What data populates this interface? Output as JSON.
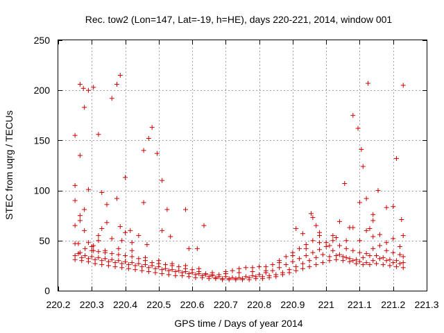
{
  "chart_data": {
    "type": "scatter",
    "title": "Rec. tow2 (Lon=147, Lat=-19, h=HE), days 220-221, 2014, window 001",
    "xlabel": "GPS time / Days of year 2014",
    "ylabel": "STEC from uqrg / TECUs",
    "xlim": [
      220.2,
      221.3
    ],
    "ylim": [
      0,
      250
    ],
    "x_ticks": [
      220.2,
      220.3,
      220.4,
      220.5,
      220.6,
      220.7,
      220.8,
      220.9,
      221.0,
      221.1,
      221.2,
      221.3
    ],
    "x_tick_labels": [
      "220.2",
      "220.3",
      "220.4",
      "220.5",
      "220.6",
      "220.7",
      "220.8",
      "220.9",
      "221",
      "221.1",
      "221.2",
      "221.3"
    ],
    "y_ticks": [
      0,
      50,
      100,
      150,
      200,
      250
    ],
    "y_tick_labels": [
      "0",
      "50",
      "100",
      "150",
      "200",
      "250"
    ],
    "grid": true,
    "marker_color": "#cc0000",
    "marker": "plus",
    "points": [
      [
        220.25,
        155
      ],
      [
        220.25,
        105
      ],
      [
        220.25,
        90
      ],
      [
        220.25,
        65
      ],
      [
        220.25,
        47
      ],
      [
        220.25,
        35
      ],
      [
        220.265,
        206
      ],
      [
        220.265,
        135
      ],
      [
        220.265,
        75
      ],
      [
        220.265,
        70
      ],
      [
        220.265,
        38
      ],
      [
        220.275,
        202
      ],
      [
        220.278,
        183
      ],
      [
        220.278,
        81
      ],
      [
        220.278,
        60
      ],
      [
        220.29,
        200
      ],
      [
        220.29,
        101
      ],
      [
        220.29,
        48
      ],
      [
        220.305,
        203
      ],
      [
        220.305,
        45
      ],
      [
        220.305,
        40
      ],
      [
        220.32,
        156
      ],
      [
        220.32,
        55
      ],
      [
        220.32,
        50
      ],
      [
        220.33,
        98
      ],
      [
        220.33,
        62
      ],
      [
        220.345,
        86
      ],
      [
        220.345,
        68
      ],
      [
        220.36,
        192
      ],
      [
        220.36,
        52
      ],
      [
        220.375,
        206
      ],
      [
        220.375,
        92
      ],
      [
        220.385,
        215
      ],
      [
        220.385,
        64
      ],
      [
        220.39,
        50
      ],
      [
        220.4,
        113
      ],
      [
        220.4,
        58
      ],
      [
        220.415,
        60
      ],
      [
        220.42,
        48
      ],
      [
        220.44,
        55
      ],
      [
        220.455,
        140
      ],
      [
        220.455,
        88
      ],
      [
        220.465,
        46
      ],
      [
        220.47,
        152
      ],
      [
        220.48,
        163
      ],
      [
        220.495,
        137
      ],
      [
        220.51,
        110
      ],
      [
        220.51,
        60
      ],
      [
        220.525,
        81
      ],
      [
        220.535,
        54
      ],
      [
        220.58,
        81
      ],
      [
        220.59,
        42
      ],
      [
        220.615,
        42
      ],
      [
        220.635,
        65
      ],
      [
        220.25,
        31
      ],
      [
        220.27,
        30
      ],
      [
        220.29,
        29
      ],
      [
        220.31,
        27
      ],
      [
        220.33,
        26
      ],
      [
        220.35,
        25
      ],
      [
        220.37,
        24
      ],
      [
        220.39,
        23
      ],
      [
        220.41,
        22
      ],
      [
        220.43,
        21
      ],
      [
        220.45,
        20
      ],
      [
        220.47,
        19
      ],
      [
        220.49,
        18
      ],
      [
        220.51,
        17
      ],
      [
        220.53,
        16
      ],
      [
        220.55,
        15
      ],
      [
        220.57,
        15
      ],
      [
        220.59,
        14
      ],
      [
        220.61,
        13
      ],
      [
        220.63,
        13
      ],
      [
        220.65,
        12
      ],
      [
        220.67,
        12
      ],
      [
        220.69,
        11
      ],
      [
        220.71,
        11
      ],
      [
        220.73,
        11
      ],
      [
        220.75,
        11
      ],
      [
        220.77,
        11
      ],
      [
        220.79,
        12
      ],
      [
        220.81,
        12
      ],
      [
        220.83,
        13
      ],
      [
        220.85,
        14
      ],
      [
        220.87,
        16
      ],
      [
        220.89,
        18
      ],
      [
        220.91,
        20
      ],
      [
        220.93,
        22
      ],
      [
        220.95,
        24
      ],
      [
        220.97,
        26
      ],
      [
        220.99,
        28
      ],
      [
        221.01,
        30
      ],
      [
        221.03,
        31
      ],
      [
        221.05,
        30
      ],
      [
        221.07,
        29
      ],
      [
        221.09,
        27
      ],
      [
        221.11,
        26
      ],
      [
        221.13,
        26
      ],
      [
        221.15,
        27
      ],
      [
        221.17,
        26
      ],
      [
        221.19,
        25
      ],
      [
        221.21,
        24
      ],
      [
        221.23,
        23
      ],
      [
        220.26,
        37
      ],
      [
        220.28,
        35
      ],
      [
        220.3,
        34
      ],
      [
        220.32,
        33
      ],
      [
        220.34,
        32
      ],
      [
        220.36,
        31
      ],
      [
        220.38,
        30
      ],
      [
        220.4,
        29
      ],
      [
        220.42,
        28
      ],
      [
        220.44,
        27
      ],
      [
        220.46,
        26
      ],
      [
        220.48,
        25
      ],
      [
        220.5,
        24
      ],
      [
        220.52,
        22
      ],
      [
        220.54,
        21
      ],
      [
        220.56,
        20
      ],
      [
        220.58,
        19
      ],
      [
        220.6,
        18
      ],
      [
        220.62,
        17
      ],
      [
        220.64,
        16
      ],
      [
        220.66,
        15
      ],
      [
        220.68,
        14
      ],
      [
        220.7,
        14
      ],
      [
        220.72,
        13
      ],
      [
        220.74,
        13
      ],
      [
        220.76,
        14
      ],
      [
        220.78,
        15
      ],
      [
        220.8,
        16
      ],
      [
        220.82,
        18
      ],
      [
        220.84,
        20
      ],
      [
        220.86,
        23
      ],
      [
        220.88,
        26
      ],
      [
        220.9,
        29
      ],
      [
        220.92,
        32
      ],
      [
        220.94,
        35
      ],
      [
        220.96,
        38
      ],
      [
        220.98,
        41
      ],
      [
        221.0,
        44
      ],
      [
        221.02,
        40
      ],
      [
        221.04,
        36
      ],
      [
        221.06,
        33
      ],
      [
        221.08,
        30
      ],
      [
        221.1,
        29
      ],
      [
        221.12,
        28
      ],
      [
        221.14,
        30
      ],
      [
        221.16,
        32
      ],
      [
        221.18,
        30
      ],
      [
        221.2,
        28
      ],
      [
        221.22,
        27
      ],
      [
        220.27,
        33
      ],
      [
        220.29,
        32
      ],
      [
        220.31,
        31
      ],
      [
        220.33,
        30
      ],
      [
        220.35,
        29
      ],
      [
        220.37,
        28
      ],
      [
        220.39,
        27
      ],
      [
        220.41,
        26
      ],
      [
        220.43,
        25
      ],
      [
        220.45,
        24
      ],
      [
        220.47,
        23
      ],
      [
        220.49,
        22
      ],
      [
        220.51,
        21
      ],
      [
        220.53,
        20
      ],
      [
        220.55,
        19
      ],
      [
        220.57,
        18
      ],
      [
        220.59,
        17
      ],
      [
        220.61,
        16
      ],
      [
        220.63,
        15
      ],
      [
        220.65,
        14
      ],
      [
        220.67,
        13
      ],
      [
        220.69,
        12
      ],
      [
        220.71,
        12
      ],
      [
        220.73,
        12
      ],
      [
        220.75,
        12
      ],
      [
        220.77,
        13
      ],
      [
        220.79,
        14
      ],
      [
        220.81,
        14
      ],
      [
        220.83,
        15
      ],
      [
        220.85,
        16
      ],
      [
        220.87,
        18
      ],
      [
        220.89,
        21
      ],
      [
        220.91,
        24
      ],
      [
        220.93,
        27
      ],
      [
        220.95,
        30
      ],
      [
        220.97,
        33
      ],
      [
        220.99,
        36
      ],
      [
        221.01,
        34
      ],
      [
        221.03,
        35
      ],
      [
        221.05,
        34
      ],
      [
        221.07,
        32
      ],
      [
        221.09,
        31
      ],
      [
        221.11,
        33
      ],
      [
        221.13,
        35
      ],
      [
        221.15,
        35
      ],
      [
        221.17,
        33
      ],
      [
        221.19,
        31
      ],
      [
        221.21,
        30
      ],
      [
        221.23,
        28
      ],
      [
        220.28,
        42
      ],
      [
        220.3,
        40
      ],
      [
        220.32,
        39
      ],
      [
        220.34,
        38
      ],
      [
        220.36,
        37
      ],
      [
        220.38,
        36
      ],
      [
        220.4,
        35
      ],
      [
        220.42,
        34
      ],
      [
        220.44,
        32
      ],
      [
        220.46,
        30
      ],
      [
        220.48,
        28
      ],
      [
        220.5,
        27
      ],
      [
        220.52,
        26
      ],
      [
        220.54,
        25
      ],
      [
        220.56,
        24
      ],
      [
        220.58,
        22
      ],
      [
        220.6,
        21
      ],
      [
        220.62,
        19
      ],
      [
        220.64,
        17
      ],
      [
        220.66,
        16
      ],
      [
        220.68,
        16
      ],
      [
        220.7,
        17
      ],
      [
        220.72,
        20
      ],
      [
        220.74,
        22
      ],
      [
        220.76,
        23
      ],
      [
        220.78,
        23
      ],
      [
        220.8,
        24
      ],
      [
        220.82,
        24
      ],
      [
        220.84,
        26
      ],
      [
        220.86,
        30
      ],
      [
        220.88,
        34
      ],
      [
        220.9,
        38
      ],
      [
        220.92,
        42
      ],
      [
        220.94,
        46
      ],
      [
        220.96,
        50
      ],
      [
        220.98,
        55
      ],
      [
        221.0,
        48
      ],
      [
        221.02,
        50
      ],
      [
        221.04,
        45
      ],
      [
        221.06,
        42
      ],
      [
        221.08,
        40
      ],
      [
        221.1,
        38
      ],
      [
        221.12,
        37
      ],
      [
        221.14,
        42
      ],
      [
        221.16,
        45
      ],
      [
        221.18,
        40
      ],
      [
        221.2,
        38
      ],
      [
        221.22,
        36
      ],
      [
        221.23,
        34
      ],
      [
        220.26,
        47
      ],
      [
        220.3,
        44
      ],
      [
        220.34,
        40
      ],
      [
        220.38,
        42
      ],
      [
        220.42,
        40
      ],
      [
        220.46,
        33
      ],
      [
        220.5,
        30
      ],
      [
        220.54,
        27
      ],
      [
        220.58,
        25
      ],
      [
        220.62,
        22
      ],
      [
        220.66,
        18
      ],
      [
        220.7,
        19
      ],
      [
        220.74,
        18
      ],
      [
        220.78,
        19
      ],
      [
        220.82,
        20
      ],
      [
        220.86,
        28
      ],
      [
        220.9,
        35
      ],
      [
        220.94,
        42
      ],
      [
        220.98,
        48
      ],
      [
        221.02,
        55
      ],
      [
        221.06,
        50
      ],
      [
        221.1,
        50
      ],
      [
        221.14,
        54
      ],
      [
        221.18,
        48
      ],
      [
        221.22,
        44
      ],
      [
        220.91,
        62
      ],
      [
        220.93,
        57
      ],
      [
        220.955,
        77
      ],
      [
        220.96,
        73
      ],
      [
        220.97,
        65
      ],
      [
        220.98,
        58
      ],
      [
        221.03,
        53
      ],
      [
        221.04,
        69
      ],
      [
        221.055,
        107
      ],
      [
        221.07,
        63
      ],
      [
        221.08,
        175
      ],
      [
        221.095,
        162
      ],
      [
        221.1,
        88
      ],
      [
        221.105,
        141
      ],
      [
        221.11,
        124
      ],
      [
        221.12,
        92
      ],
      [
        221.125,
        207
      ],
      [
        221.13,
        62
      ],
      [
        221.14,
        76
      ],
      [
        221.14,
        70
      ],
      [
        221.155,
        100
      ],
      [
        221.16,
        56
      ],
      [
        221.18,
        83
      ],
      [
        221.2,
        84
      ],
      [
        221.21,
        132
      ],
      [
        221.225,
        71
      ],
      [
        221.23,
        205
      ],
      [
        221.23,
        55
      ],
      [
        221.08,
        63
      ],
      [
        221.12,
        60
      ],
      [
        221.2,
        52
      ],
      [
        221.01,
        45
      ]
    ]
  }
}
